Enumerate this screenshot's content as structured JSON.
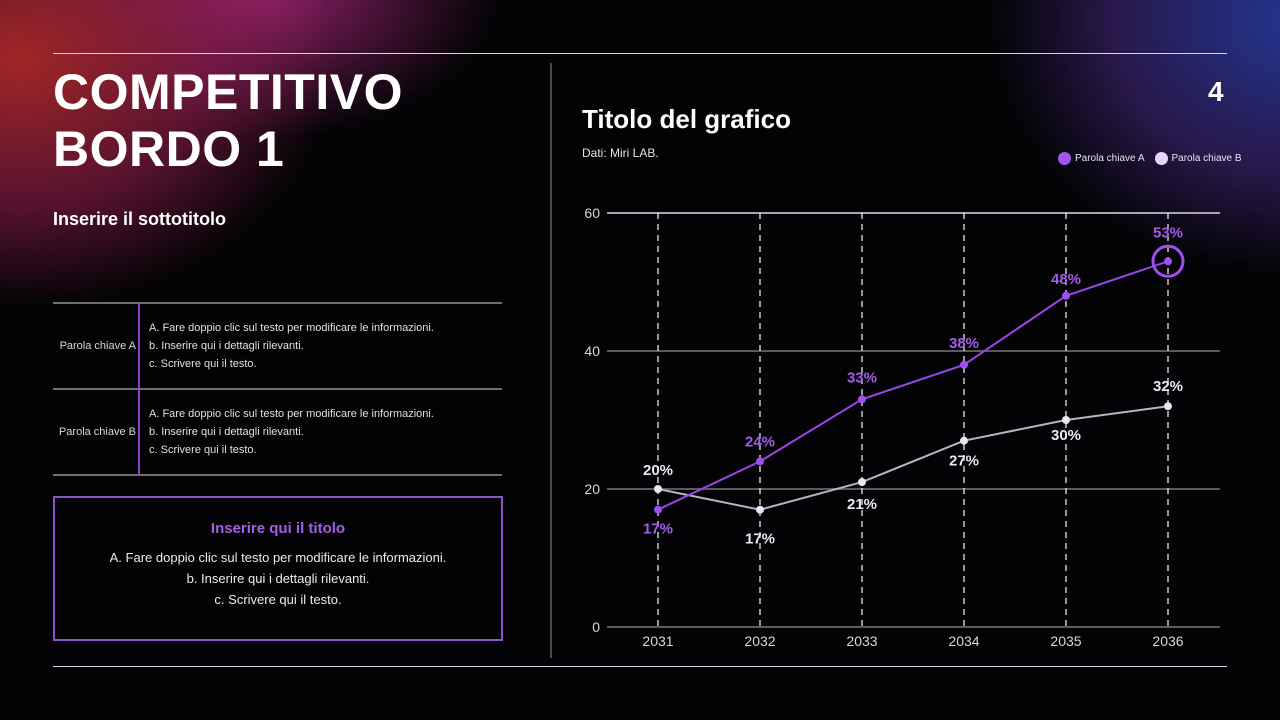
{
  "slide": {
    "title_line1": "COMPETITIVO",
    "title_line2": "BORDO 1",
    "subtitle": "Inserire il sottotitolo",
    "page_number": "4"
  },
  "table": {
    "rows": [
      {
        "key": "Parola chiave A",
        "lines": [
          "A. Fare doppio clic sul testo per modificare le informazioni.",
          "b. Inserire qui i dettagli rilevanti.",
          "c. Scrivere qui il testo."
        ]
      },
      {
        "key": "Parola chiave B",
        "lines": [
          "A. Fare doppio clic sul testo per modificare le informazioni.",
          "b. Inserire qui i dettagli rilevanti.",
          "c. Scrivere qui il testo."
        ]
      }
    ]
  },
  "callout": {
    "title": "Inserire qui il titolo",
    "lines": [
      "A. Fare doppio clic sul testo per modificare le informazioni.",
      "b. Inserire qui i dettagli rilevanti.",
      "c. Scrivere qui il testo."
    ]
  },
  "colors": {
    "series_a": "#9b45e6",
    "series_b": "#b8b4c0",
    "series_b_marker": "#ece4f8",
    "accent_border": "#8b55c8"
  },
  "chart_data": {
    "type": "line",
    "title": "Titolo del grafico",
    "subtitle": "Dati: Miri LAB.",
    "xlabel": "",
    "ylabel": "",
    "categories": [
      "2031",
      "2032",
      "2033",
      "2034",
      "2035",
      "2036"
    ],
    "yticks": [
      0,
      20,
      40,
      60
    ],
    "ylim": [
      0,
      60
    ],
    "grid": "horizontal solid at y ticks; vertical dashed at each category",
    "legend_position": "top-right",
    "series": [
      {
        "name": "Parola chiave A",
        "values": [
          17,
          24,
          33,
          38,
          48,
          53
        ],
        "labels": [
          "17%",
          "24%",
          "33%",
          "38%",
          "48%",
          "53%"
        ]
      },
      {
        "name": "Parola chiave B",
        "values": [
          20,
          17,
          21,
          27,
          30,
          32
        ],
        "labels": [
          "20%",
          "17%",
          "21%",
          "27%",
          "30%",
          "32%"
        ]
      }
    ],
    "annotations": [
      {
        "series": "Parola chiave A",
        "category": "2036",
        "type": "circle-highlight"
      }
    ]
  }
}
